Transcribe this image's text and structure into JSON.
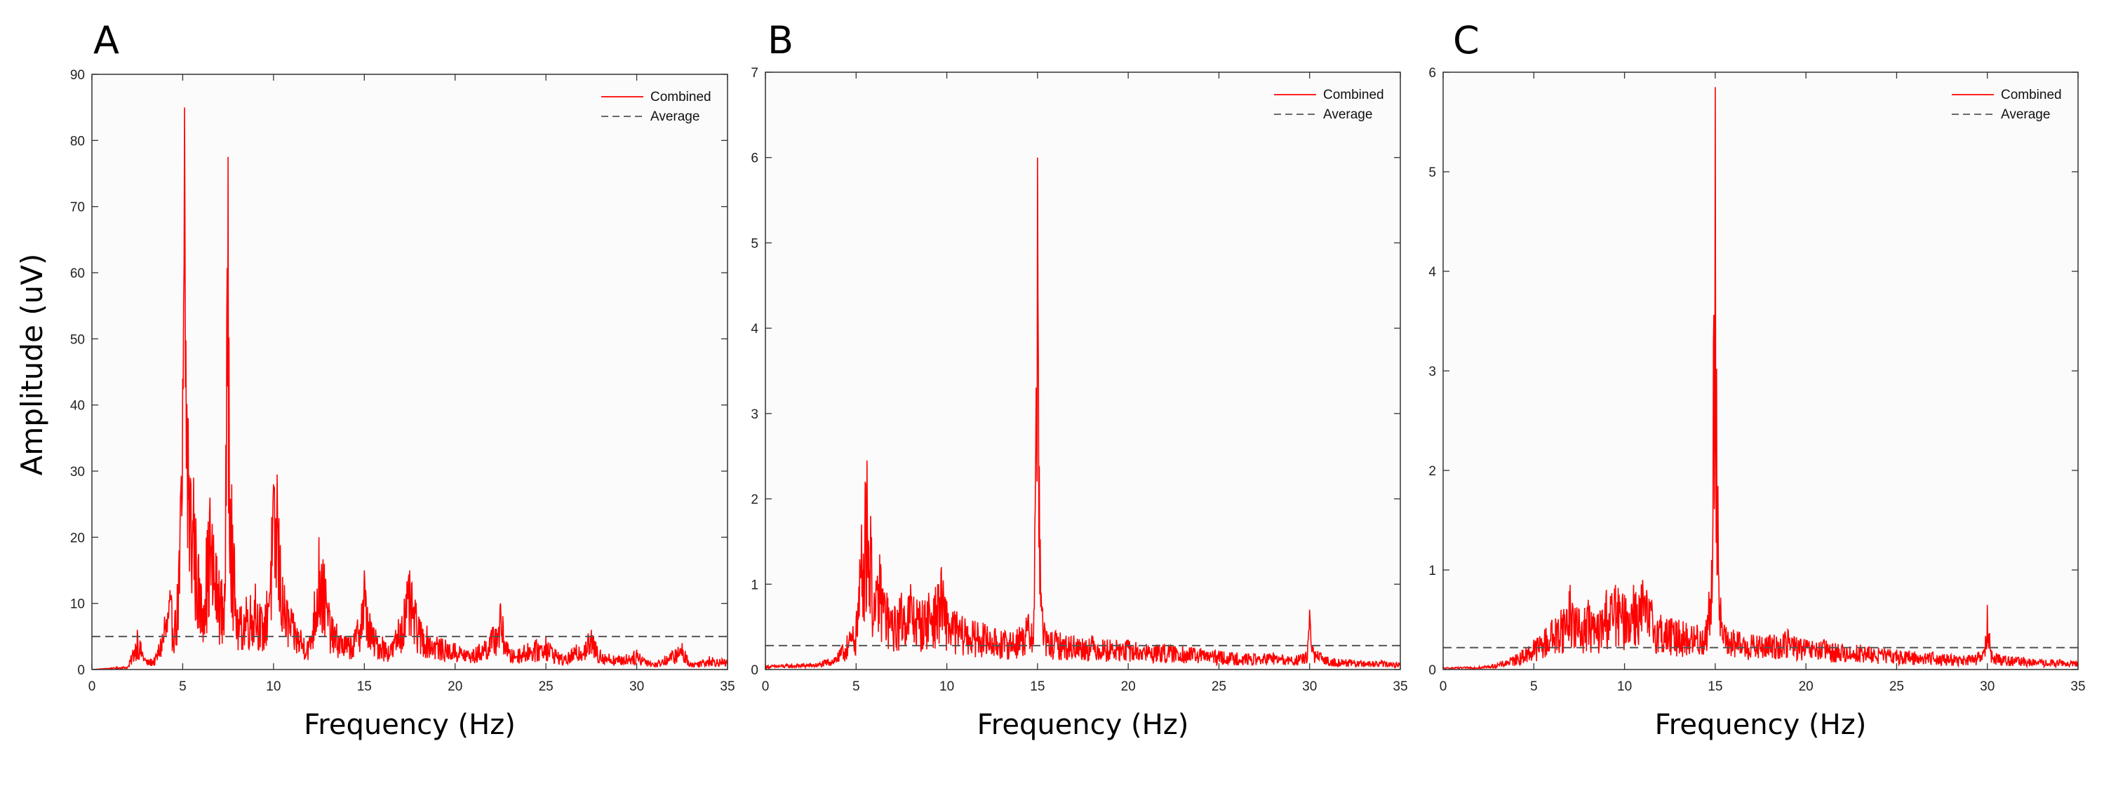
{
  "figure": {
    "ylabel": "Amplitude (uV)",
    "legend": {
      "combined": "Combined",
      "average": "Average"
    },
    "colors": {
      "combined": "#ff0000",
      "average": "#555555",
      "axes": "#333333",
      "plot_bg": "#fbfbfb"
    }
  },
  "chart_data": [
    {
      "type": "line",
      "panel": "A",
      "xlabel": "Frequency (Hz)",
      "ylabel": "Amplitude (uV)",
      "xlim": [
        0,
        35
      ],
      "ylim": [
        0,
        90
      ],
      "xticks": [
        0,
        5,
        10,
        15,
        20,
        25,
        30,
        35
      ],
      "yticks": [
        0,
        10,
        20,
        30,
        40,
        50,
        60,
        70,
        80,
        90
      ],
      "legend_position": "top-right",
      "series": [
        {
          "name": "Combined",
          "style": "solid",
          "color": "#ff0000",
          "x": [
            0,
            2,
            2.5,
            3,
            3.5,
            4,
            4.3,
            4.6,
            4.8,
            5.0,
            5.1,
            5.3,
            5.6,
            6.0,
            6.5,
            7.0,
            7.3,
            7.5,
            7.7,
            8.0,
            8.5,
            9.0,
            9.5,
            10.0,
            10.2,
            10.5,
            11,
            11.5,
            12,
            12.5,
            12.8,
            13.2,
            14,
            14.5,
            15.0,
            15.4,
            16,
            16.5,
            17.5,
            18,
            19,
            20,
            21,
            22,
            22.5,
            23,
            24,
            25,
            26,
            27.5,
            28,
            29,
            30,
            31,
            32.5,
            33,
            34,
            35
          ],
          "values": [
            0,
            0.5,
            6,
            1.5,
            2,
            8,
            12,
            9,
            18,
            44,
            85,
            38,
            29,
            13,
            26,
            15,
            13,
            77.5,
            28,
            9,
            11,
            13,
            8,
            28,
            29.5,
            14,
            9,
            6,
            5,
            20,
            16,
            8,
            5,
            6,
            15,
            7,
            5,
            4,
            15,
            8,
            5,
            4,
            3,
            6,
            10,
            3,
            4,
            5,
            2,
            6,
            3,
            2,
            3,
            1,
            4,
            1,
            2,
            1.5
          ]
        },
        {
          "name": "Average",
          "style": "dashed",
          "color": "#555555",
          "x": [
            0,
            35
          ],
          "values": [
            5,
            5
          ]
        }
      ]
    },
    {
      "type": "line",
      "panel": "B",
      "xlabel": "Frequency (Hz)",
      "ylabel": "",
      "xlim": [
        0,
        35
      ],
      "ylim": [
        0,
        7
      ],
      "xticks": [
        0,
        5,
        10,
        15,
        20,
        25,
        30,
        35
      ],
      "yticks": [
        0,
        1,
        2,
        3,
        4,
        5,
        6,
        7
      ],
      "legend_position": "top-right",
      "series": [
        {
          "name": "Combined",
          "style": "solid",
          "color": "#ff0000",
          "x": [
            0,
            3,
            4,
            4.5,
            5,
            5.3,
            5.5,
            5.6,
            5.8,
            6.0,
            6.3,
            6.7,
            7,
            7.5,
            8,
            8.5,
            9,
            9.5,
            9.7,
            10,
            11,
            12,
            13,
            14,
            14.5,
            14.8,
            15.0,
            15.2,
            15.5,
            16,
            17,
            18,
            19,
            20,
            21,
            22,
            23,
            24,
            25,
            26,
            27,
            28,
            29,
            29.8,
            30.0,
            30.2,
            31,
            32,
            33,
            34,
            35
          ],
          "values": [
            0.05,
            0.08,
            0.2,
            0.4,
            0.6,
            1.7,
            2.2,
            2.45,
            1.8,
            0.9,
            1.35,
            0.9,
            0.7,
            0.9,
            1.0,
            0.8,
            0.9,
            1.0,
            1.2,
            0.8,
            0.6,
            0.55,
            0.45,
            0.5,
            0.65,
            0.7,
            6.0,
            0.9,
            0.45,
            0.45,
            0.4,
            0.4,
            0.35,
            0.35,
            0.3,
            0.3,
            0.28,
            0.25,
            0.22,
            0.2,
            0.18,
            0.2,
            0.15,
            0.2,
            0.7,
            0.25,
            0.15,
            0.12,
            0.1,
            0.1,
            0.08
          ]
        },
        {
          "name": "Average",
          "style": "dashed",
          "color": "#555555",
          "x": [
            0,
            35
          ],
          "values": [
            0.28,
            0.28
          ]
        }
      ]
    },
    {
      "type": "line",
      "panel": "C",
      "xlabel": "Frequency (Hz)",
      "ylabel": "",
      "xlim": [
        0,
        35
      ],
      "ylim": [
        0,
        6
      ],
      "xticks": [
        0,
        5,
        10,
        15,
        20,
        25,
        30,
        35
      ],
      "yticks": [
        0,
        1,
        2,
        3,
        4,
        5,
        6
      ],
      "legend_position": "top-right",
      "series": [
        {
          "name": "Combined",
          "style": "solid",
          "color": "#ff0000",
          "x": [
            0,
            2,
            3,
            4,
            5,
            6,
            6.5,
            7,
            7.5,
            8,
            8.5,
            9,
            9.5,
            10,
            10.5,
            11,
            11.5,
            12,
            13,
            14,
            14.5,
            14.8,
            15.0,
            15.2,
            15.5,
            16,
            17,
            18,
            19,
            20,
            21,
            22,
            23,
            24,
            25,
            26,
            27,
            28,
            29,
            29.8,
            30.0,
            30.2,
            31,
            32,
            33,
            34,
            35
          ],
          "values": [
            0.02,
            0.03,
            0.06,
            0.15,
            0.3,
            0.5,
            0.6,
            0.85,
            0.6,
            0.7,
            0.55,
            0.8,
            0.85,
            0.75,
            0.85,
            0.9,
            0.7,
            0.55,
            0.5,
            0.45,
            0.5,
            1.1,
            5.85,
            0.9,
            0.45,
            0.4,
            0.35,
            0.35,
            0.4,
            0.3,
            0.3,
            0.25,
            0.25,
            0.22,
            0.2,
            0.18,
            0.18,
            0.15,
            0.14,
            0.2,
            0.65,
            0.2,
            0.14,
            0.12,
            0.1,
            0.1,
            0.08
          ]
        },
        {
          "name": "Average",
          "style": "dashed",
          "color": "#555555",
          "x": [
            0,
            35
          ],
          "values": [
            0.22,
            0.22
          ]
        }
      ]
    }
  ]
}
